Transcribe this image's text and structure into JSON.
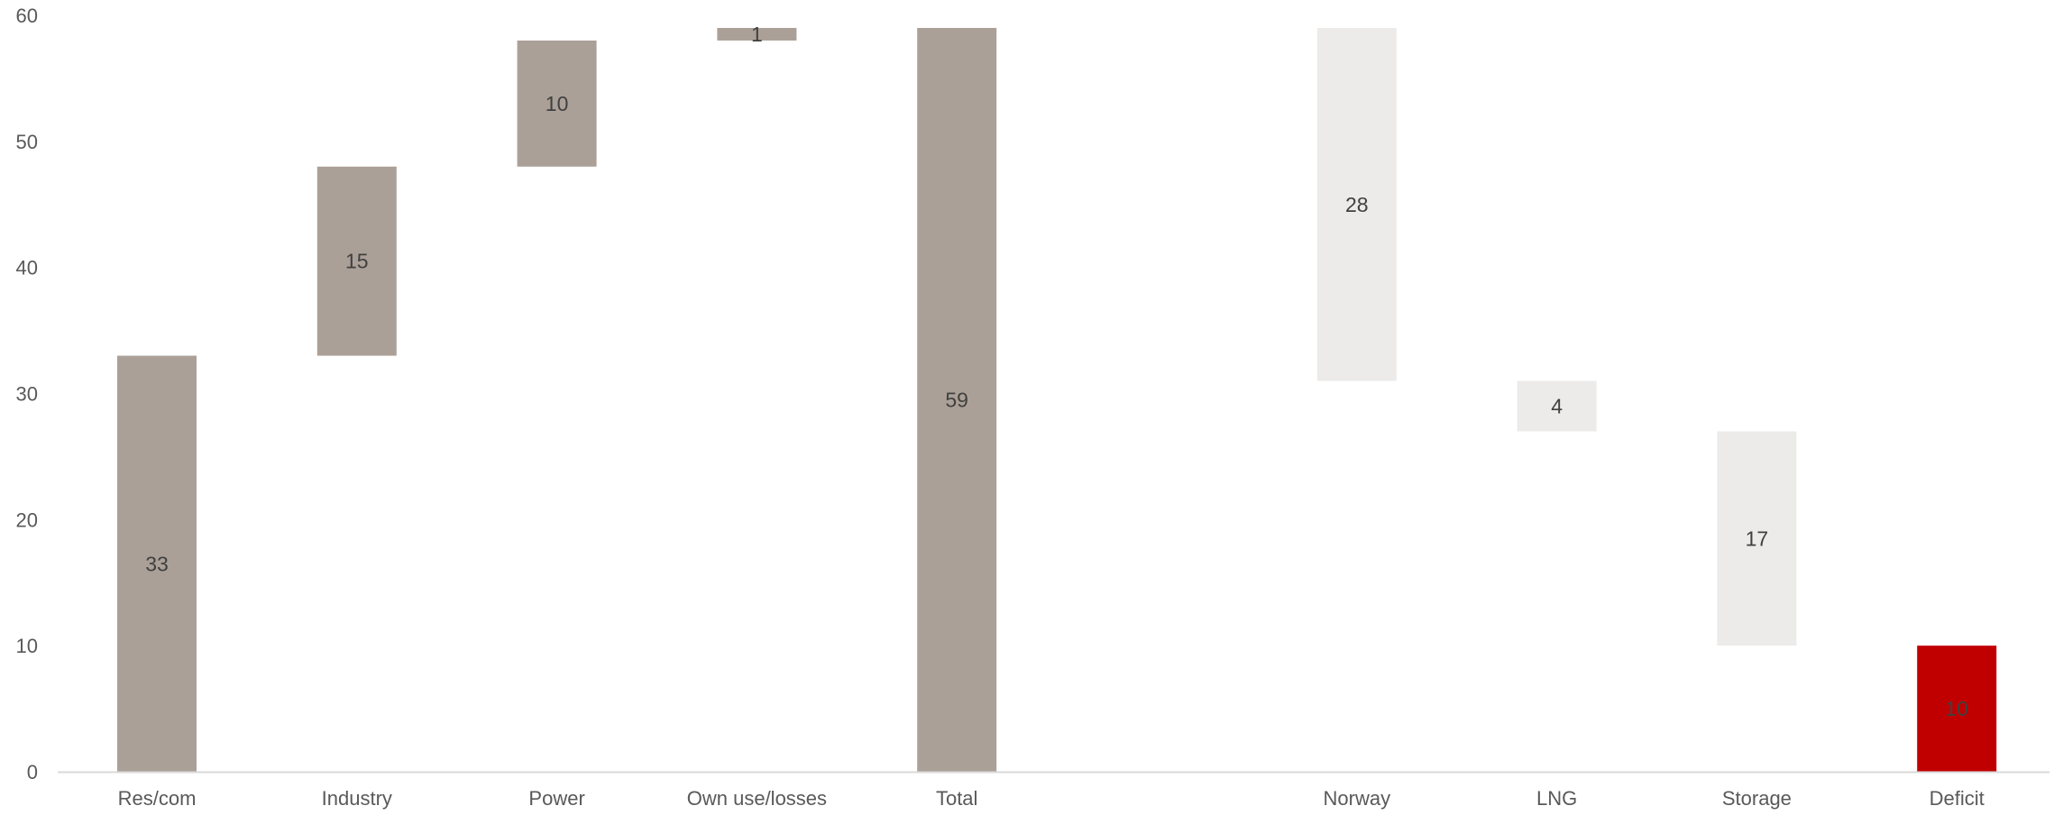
{
  "chart_data": {
    "type": "bar",
    "subtype": "waterfall",
    "title": "",
    "xlabel": "",
    "ylabel": "",
    "ylim": [
      0,
      60
    ],
    "yticks": [
      "0",
      "10",
      "20",
      "30",
      "40",
      "50",
      "60"
    ],
    "grid": false,
    "legend": "none",
    "categories": [
      "Res/com",
      "Industry",
      "Power",
      "Own use/losses",
      "Total",
      "",
      "Norway",
      "LNG",
      "Storage",
      "Deficit"
    ],
    "bars": [
      {
        "category": "Res/com",
        "start": 0,
        "end": 33,
        "label": "33",
        "color": "#aba097"
      },
      {
        "category": "Industry",
        "start": 33,
        "end": 48,
        "label": "15",
        "color": "#aba097"
      },
      {
        "category": "Power",
        "start": 48,
        "end": 58,
        "label": "10",
        "color": "#aba097"
      },
      {
        "category": "Own use/losses",
        "start": 58,
        "end": 59,
        "label": "1",
        "color": "#aba097"
      },
      {
        "category": "Total",
        "start": 0,
        "end": 59,
        "label": "59",
        "color": "#aba097"
      },
      {
        "category": "",
        "start": 0,
        "end": 0,
        "label": "",
        "color": "#ffffff"
      },
      {
        "category": "Norway",
        "start": 31,
        "end": 59,
        "label": "28",
        "color": "#ecebe9"
      },
      {
        "category": "LNG",
        "start": 27,
        "end": 31,
        "label": "4",
        "color": "#ecebe9"
      },
      {
        "category": "Storage",
        "start": 10,
        "end": 27,
        "label": "17",
        "color": "#ecebe9"
      },
      {
        "category": "Deficit",
        "start": 0,
        "end": 10,
        "label": "10",
        "color": "#c00000"
      }
    ],
    "colors": {
      "demand": "#aba097",
      "supply": "#ecebe9",
      "deficit": "#c00000",
      "axis": "#d9d9d9",
      "tick_text": "#595959",
      "label_text": "#404040"
    }
  }
}
